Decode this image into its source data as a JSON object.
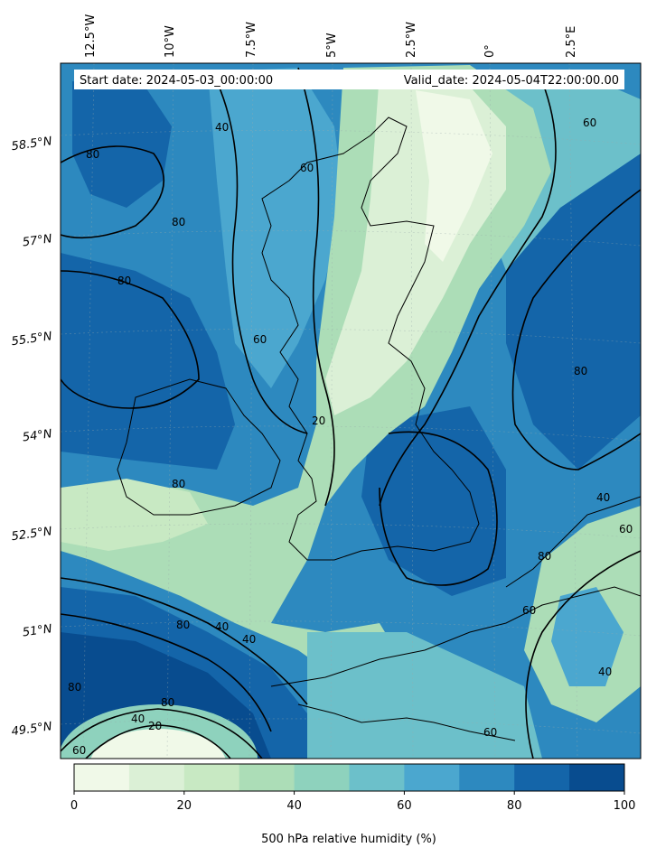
{
  "header": {
    "start_date": "Start date: 2024-05-03_00:00:00",
    "valid_date": "Valid_date: 2024-05-04T22:00:00.00"
  },
  "longitude_labels": [
    "12.5°W",
    "10°W",
    "7.5°W",
    "5°W",
    "2.5°W",
    "0°",
    "2.5°E"
  ],
  "latitude_labels": [
    "58.5°N",
    "57°N",
    "55.5°N",
    "54°N",
    "52.5°N",
    "51°N",
    "49.5°N"
  ],
  "colorbar": {
    "title": "500 hPa relative humidity (%)",
    "ticks": [
      "0",
      "20",
      "40",
      "60",
      "80",
      "100"
    ],
    "levels": [
      0,
      10,
      20,
      30,
      40,
      50,
      60,
      70,
      80,
      90,
      100
    ],
    "colors": [
      "#f0f9e8",
      "#dbf0d6",
      "#c8e9c3",
      "#acddb7",
      "#8ed2bd",
      "#6cc0ca",
      "#4ba7cf",
      "#2d89bf",
      "#1465a9",
      "#084c8f"
    ]
  },
  "contour_labels": [
    "20",
    "40",
    "60",
    "80"
  ]
}
